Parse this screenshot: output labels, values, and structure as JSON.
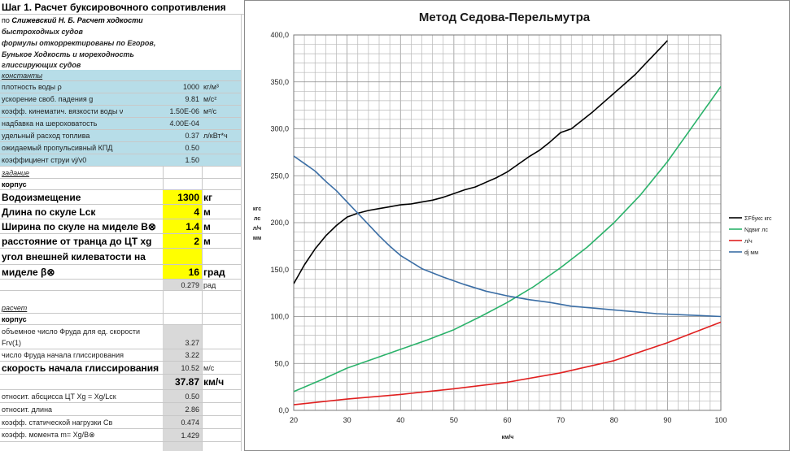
{
  "sheet": {
    "step_title": "Шаг 1. Расчет буксировочного сопротивления",
    "ref_line1_prefix": "по ",
    "ref_line1_italic": "Слижевский Н. Б. Расчет ходкости",
    "ref_line2": "быстроходных судов",
    "ref_line3": "формулы откорректированы по Егоров,",
    "ref_line4": "Бунькое Ходкость и мореходность",
    "ref_line5": "глиссирующих судов",
    "const_header": "константы",
    "constants": [
      {
        "label": "плотность воды ρ",
        "value": "1000",
        "unit": "кг/м³"
      },
      {
        "label": "ускорение своб. падения g",
        "value": "9.81",
        "unit": "м/с²"
      },
      {
        "label": "коэфф. кинематич. вязкости воды ν",
        "value": "1.50E-06",
        "unit": "м²/с"
      },
      {
        "label": "надбавка на шероховатость",
        "value": "4.00E-04",
        "unit": ""
      },
      {
        "label": "удельный расход топлива",
        "value": "0.37",
        "unit": "л/кВт*ч"
      },
      {
        "label": "ожидаемый пропульсивный КПД",
        "value": "0.50",
        "unit": ""
      },
      {
        "label": "коэффициент струи vj/v0",
        "value": "1.50",
        "unit": ""
      }
    ],
    "task_header": "задание",
    "hull_header": "корпус",
    "inputs": [
      {
        "label": "Водоизмещение",
        "value": "1300",
        "unit": "кг"
      },
      {
        "label": "Длина по скуле Lск",
        "value": "4",
        "unit": "м"
      },
      {
        "label": "Ширина по скуле на миделе B⊗",
        "value": "1.4",
        "unit": "м"
      },
      {
        "label": "расстояние от транца до ЦТ xg",
        "value": "2",
        "unit": "м"
      }
    ],
    "deadrise_label1": "угол внешней килеватости на",
    "deadrise_label2": "миделе β⊗",
    "deadrise_value": "16",
    "deadrise_unit": "град",
    "deadrise_rad": "0.279",
    "deadrise_rad_unit": "рад",
    "calc_header": "расчет",
    "calc_hull_header": "корпус",
    "froude_label1": "объемное число Фруда для ед. скорости",
    "froude_label2": "Frv(1)",
    "froude_value": "3.27",
    "froude_start_label": "число Фруда начала глиссирования",
    "froude_start_value": "3.22",
    "plan_speed_label": "скорость начала глиссирования",
    "plan_speed_ms": "10.52",
    "plan_speed_ms_unit": "м/с",
    "plan_speed_kmh": "37.87",
    "plan_speed_kmh_unit": "км/ч",
    "results": [
      {
        "label": "относит. абсцисса ЦТ  Xg = Xg/Lск",
        "value": "0.50"
      },
      {
        "label": "относит. длина",
        "value": "2.86"
      },
      {
        "label": "коэфф. статической нагрузки Cв",
        "value": "0.474"
      },
      {
        "label": "коэфф. момента m= Xg/B⊗",
        "value": "1.429"
      }
    ]
  },
  "chart_data": {
    "type": "line",
    "title": "Метод Седова-Перельмутра",
    "xlabel": "км/ч",
    "ylabel_lines": [
      "кгс",
      "лс",
      "л/ч",
      "мм"
    ],
    "xlim": [
      20,
      100
    ],
    "ylim": [
      0,
      400
    ],
    "xticks": [
      "20",
      "30",
      "40",
      "50",
      "60",
      "70",
      "80",
      "90",
      "100"
    ],
    "yticks": [
      "0,0",
      "50,0",
      "100,0",
      "150,0",
      "200,0",
      "250,0",
      "300,0",
      "350,0",
      "400,0"
    ],
    "grid": true,
    "legend_position": "right",
    "series": [
      {
        "name": "ΣFбукс кгс",
        "color": "#000000",
        "x": [
          20,
          21,
          22,
          24,
          26,
          28,
          30,
          32,
          34,
          36,
          38,
          40,
          42,
          44,
          46,
          48,
          50,
          52,
          54,
          56,
          58,
          60,
          62,
          64,
          66,
          68,
          70,
          72,
          74,
          76,
          78,
          80,
          82,
          84,
          86,
          88,
          90
        ],
        "y": [
          135,
          145,
          155,
          172,
          186,
          197,
          206,
          210,
          213,
          215,
          217,
          219,
          220,
          222,
          224,
          227,
          231,
          235,
          238,
          243,
          248,
          254,
          262,
          270,
          277,
          286,
          296,
          300,
          309,
          318,
          328,
          338,
          348,
          358,
          370,
          382,
          394
        ]
      },
      {
        "name": "Nдвиг лс",
        "color": "#2ab26a",
        "x": [
          20,
          25,
          30,
          35,
          40,
          45,
          50,
          55,
          60,
          65,
          70,
          75,
          80,
          85,
          90,
          95,
          100
        ],
        "y": [
          20,
          32,
          45,
          55,
          65,
          75,
          86,
          100,
          115,
          132,
          152,
          174,
          200,
          230,
          265,
          305,
          345
        ]
      },
      {
        "name": "л/ч",
        "color": "#e02020",
        "x": [
          20,
          30,
          40,
          50,
          60,
          70,
          80,
          90,
          100
        ],
        "y": [
          6,
          12,
          17,
          23,
          30,
          40,
          53,
          72,
          94
        ]
      },
      {
        "name": "dj мм",
        "color": "#3b6ea5",
        "x": [
          20,
          22,
          24,
          26,
          28,
          30,
          32,
          34,
          36,
          38,
          40,
          44,
          48,
          52,
          56,
          60,
          64,
          68,
          72,
          76,
          80,
          84,
          88,
          92,
          96,
          100
        ],
        "y": [
          271,
          263,
          255,
          244,
          234,
          222,
          210,
          198,
          186,
          175,
          165,
          151,
          142,
          134,
          127,
          122,
          118,
          115,
          111,
          109,
          107,
          105,
          103,
          102,
          101,
          100
        ]
      }
    ]
  }
}
